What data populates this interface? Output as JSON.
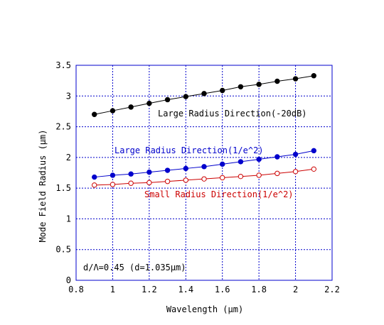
{
  "chart_data": {
    "type": "line",
    "xlabel": "Wavelength (μm)",
    "ylabel": "Mode Field Radius (μm)",
    "xlim": [
      0.8,
      2.2
    ],
    "ylim": [
      0,
      3.5
    ],
    "x_ticks": [
      "0.8",
      "1",
      "1.2",
      "1.4",
      "1.6",
      "1.8",
      "2",
      "2.2"
    ],
    "y_ticks": [
      "0",
      "0.5",
      "1",
      "1.5",
      "2",
      "2.5",
      "3",
      "3.5"
    ],
    "grid": true,
    "grid_color": "#0000cc",
    "x": [
      0.9,
      1.0,
      1.1,
      1.2,
      1.3,
      1.4,
      1.5,
      1.6,
      1.7,
      1.8,
      1.9,
      2.0,
      2.1
    ],
    "series": [
      {
        "name": "Large Radius Direction(-20dB)",
        "color": "#000000",
        "marker": "filled-circle",
        "values": [
          2.7,
          2.76,
          2.82,
          2.88,
          2.94,
          2.99,
          3.04,
          3.09,
          3.15,
          3.19,
          3.24,
          3.28,
          3.33
        ]
      },
      {
        "name": "Large Radius Direction(1/e^2)",
        "color": "#0000cc",
        "marker": "filled-circle",
        "values": [
          1.68,
          1.71,
          1.73,
          1.76,
          1.79,
          1.82,
          1.85,
          1.89,
          1.93,
          1.97,
          2.01,
          2.05,
          2.11
        ]
      },
      {
        "name": "Small Radius Direction(1/e^2)",
        "color": "#cc0000",
        "marker": "open-circle",
        "values": [
          1.55,
          1.56,
          1.58,
          1.59,
          1.61,
          1.63,
          1.65,
          1.67,
          1.69,
          1.71,
          1.74,
          1.77,
          1.81
        ]
      }
    ],
    "annotation": "d/Λ=0.45 (d=1.035μm)"
  }
}
